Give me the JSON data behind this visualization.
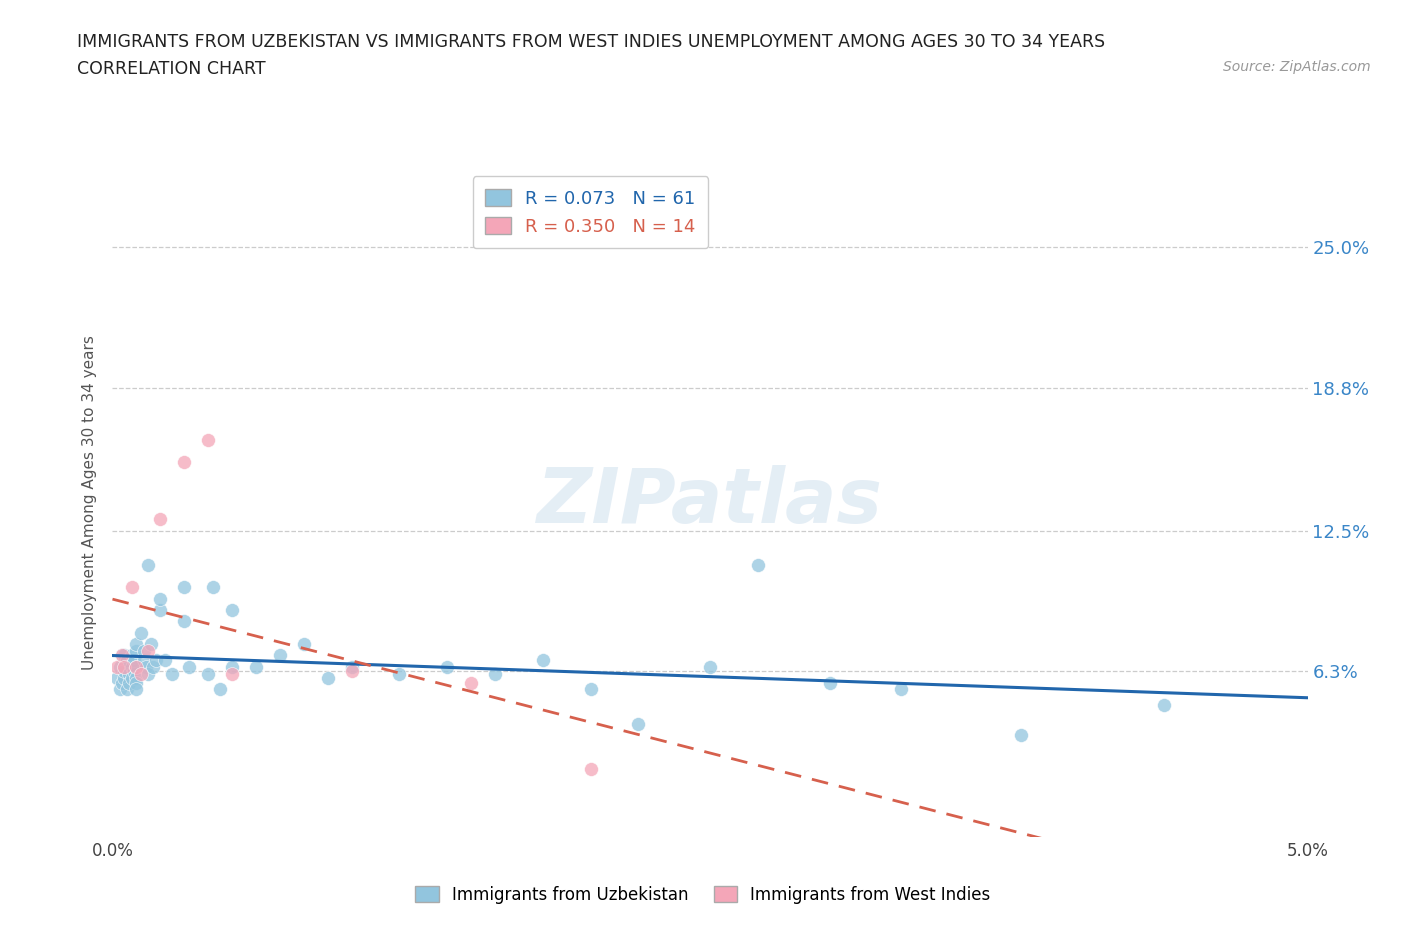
{
  "title_line1": "IMMIGRANTS FROM UZBEKISTAN VS IMMIGRANTS FROM WEST INDIES UNEMPLOYMENT AMONG AGES 30 TO 34 YEARS",
  "title_line2": "CORRELATION CHART",
  "source_text": "Source: ZipAtlas.com",
  "ylabel": "Unemployment Among Ages 30 to 34 years",
  "xlim": [
    0.0,
    0.05
  ],
  "ylim": [
    -0.01,
    0.285
  ],
  "ytick_labels": [
    "6.3%",
    "12.5%",
    "18.8%",
    "25.0%"
  ],
  "ytick_values": [
    0.063,
    0.125,
    0.188,
    0.25
  ],
  "xtick_labels": [
    "0.0%",
    "5.0%"
  ],
  "xtick_values": [
    0.0,
    0.05
  ],
  "r_uzbekistan": 0.073,
  "n_uzbekistan": 61,
  "r_west_indies": 0.35,
  "n_west_indies": 14,
  "color_uzbekistan": "#92c5de",
  "color_west_indies": "#f4a6b8",
  "color_uzbekistan_line": "#2166ac",
  "color_west_indies_line": "#d6604d",
  "watermark_text": "ZIPatlas",
  "uzbekistan_x": [
    0.0002,
    0.0003,
    0.0003,
    0.0004,
    0.0004,
    0.0005,
    0.0005,
    0.0005,
    0.0006,
    0.0006,
    0.0007,
    0.0007,
    0.0008,
    0.0008,
    0.0008,
    0.0009,
    0.0009,
    0.001,
    0.001,
    0.001,
    0.001,
    0.001,
    0.001,
    0.0012,
    0.0013,
    0.0013,
    0.0014,
    0.0015,
    0.0015,
    0.0016,
    0.0017,
    0.0018,
    0.002,
    0.002,
    0.0022,
    0.0025,
    0.003,
    0.003,
    0.0032,
    0.004,
    0.0042,
    0.0045,
    0.005,
    0.005,
    0.006,
    0.007,
    0.008,
    0.009,
    0.01,
    0.012,
    0.014,
    0.016,
    0.018,
    0.02,
    0.022,
    0.025,
    0.027,
    0.03,
    0.033,
    0.038,
    0.044
  ],
  "uzbekistan_y": [
    0.06,
    0.055,
    0.065,
    0.058,
    0.07,
    0.06,
    0.063,
    0.07,
    0.055,
    0.068,
    0.062,
    0.058,
    0.065,
    0.07,
    0.06,
    0.063,
    0.068,
    0.072,
    0.065,
    0.06,
    0.058,
    0.055,
    0.075,
    0.08,
    0.068,
    0.072,
    0.065,
    0.11,
    0.062,
    0.075,
    0.065,
    0.068,
    0.09,
    0.095,
    0.068,
    0.062,
    0.1,
    0.085,
    0.065,
    0.062,
    0.1,
    0.055,
    0.09,
    0.065,
    0.065,
    0.07,
    0.075,
    0.06,
    0.065,
    0.062,
    0.065,
    0.062,
    0.068,
    0.055,
    0.04,
    0.065,
    0.11,
    0.058,
    0.055,
    0.035,
    0.048
  ],
  "west_indies_x": [
    0.0002,
    0.0004,
    0.0005,
    0.0008,
    0.001,
    0.0012,
    0.0015,
    0.002,
    0.003,
    0.004,
    0.005,
    0.01,
    0.015,
    0.02
  ],
  "west_indies_y": [
    0.065,
    0.07,
    0.065,
    0.1,
    0.065,
    0.062,
    0.072,
    0.13,
    0.155,
    0.165,
    0.062,
    0.063,
    0.058,
    0.02
  ]
}
